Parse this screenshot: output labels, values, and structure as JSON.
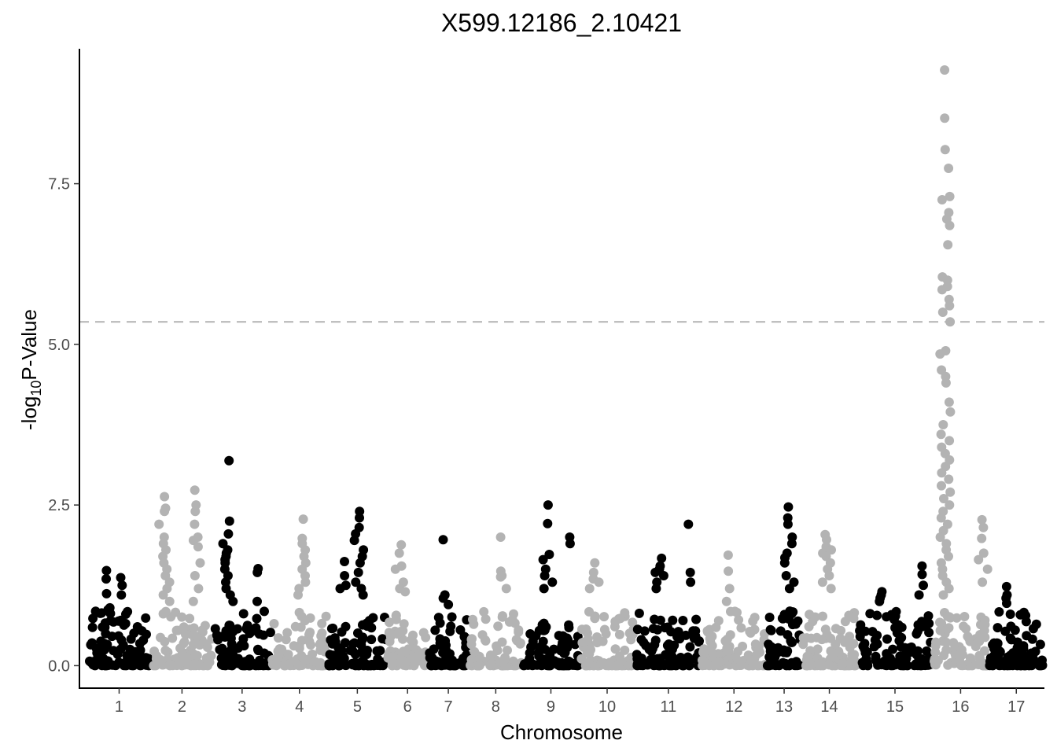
{
  "chart_data": {
    "type": "scatter",
    "title": "X599.12186_2.10421",
    "xlabel": "Chromosome",
    "ylabel": {
      "pre": "-log",
      "sub": "10",
      "post": "P-Value"
    },
    "ylim": [
      -0.35,
      9.6
    ],
    "yticks": [
      0.0,
      2.5,
      5.0,
      7.5
    ],
    "ytick_labels": [
      "0.0",
      "2.5",
      "5.0",
      "7.5"
    ],
    "threshold": 5.35,
    "grid": false,
    "legend": "none",
    "colors": {
      "odd": "#000000",
      "even": "#b3b3b3",
      "threshold": "#b3b3b3"
    },
    "chromosomes": [
      {
        "label": "1",
        "start": 0.0,
        "end": 2.9
      },
      {
        "label": "2",
        "start": 2.9,
        "end": 5.7
      },
      {
        "label": "3",
        "start": 5.7,
        "end": 8.35
      },
      {
        "label": "4",
        "start": 8.35,
        "end": 10.9
      },
      {
        "label": "5",
        "start": 10.9,
        "end": 13.6
      },
      {
        "label": "6",
        "start": 13.6,
        "end": 15.45
      },
      {
        "label": "7",
        "start": 15.45,
        "end": 17.3
      },
      {
        "label": "8",
        "start": 17.3,
        "end": 19.75
      },
      {
        "label": "9",
        "start": 19.75,
        "end": 22.3
      },
      {
        "label": "10",
        "start": 22.3,
        "end": 24.85
      },
      {
        "label": "11",
        "start": 24.85,
        "end": 27.85
      },
      {
        "label": "12",
        "start": 27.85,
        "end": 30.8
      },
      {
        "label": "13",
        "start": 30.8,
        "end": 32.4
      },
      {
        "label": "14",
        "start": 32.4,
        "end": 34.9
      },
      {
        "label": "15",
        "start": 34.9,
        "end": 38.35
      },
      {
        "label": "16",
        "start": 38.35,
        "end": 40.85
      },
      {
        "label": "17",
        "start": 40.85,
        "end": 43.4
      }
    ],
    "xlim": [
      -0.35,
      43.4
    ],
    "peaks": [
      {
        "chr": "1",
        "x": 0.9,
        "values": [
          1.48,
          1.35,
          1.12,
          0.9,
          0.87,
          0.82,
          0.7,
          0.6
        ]
      },
      {
        "chr": "1",
        "x": 1.55,
        "values": [
          1.37,
          1.25,
          1.1,
          0.8
        ]
      },
      {
        "chr": "2",
        "x": 3.5,
        "values": [
          2.63,
          2.45,
          2.4,
          2.2,
          2.0,
          1.9,
          1.8,
          1.7,
          1.6,
          1.5,
          1.4,
          1.3,
          1.2,
          1.1,
          1.0
        ]
      },
      {
        "chr": "2",
        "x": 4.9,
        "values": [
          2.73,
          2.5,
          2.4,
          2.2,
          2.0,
          1.95,
          1.85,
          1.6,
          1.4,
          1.2,
          1.0
        ]
      },
      {
        "chr": "3",
        "x": 6.4,
        "values": [
          3.19,
          2.25,
          2.05,
          1.9,
          1.8,
          1.75,
          1.7,
          1.65,
          1.6,
          1.5,
          1.4,
          1.3,
          1.2,
          1.1,
          1.0
        ]
      },
      {
        "chr": "3",
        "x": 7.7,
        "values": [
          1.51,
          1.45,
          1.0
        ]
      },
      {
        "chr": "4",
        "x": 9.8,
        "values": [
          2.28,
          1.98,
          1.9,
          1.8,
          1.7,
          1.6,
          1.5,
          1.4,
          1.3,
          1.2,
          1.1
        ]
      },
      {
        "chr": "5",
        "x": 12.3,
        "values": [
          2.4,
          2.3,
          2.15,
          2.05,
          1.95,
          1.8,
          1.7,
          1.6,
          1.45,
          1.3,
          1.2,
          1.1
        ]
      },
      {
        "chr": "5",
        "x": 11.7,
        "values": [
          1.62,
          1.4,
          1.25,
          1.2
        ]
      },
      {
        "chr": "6",
        "x": 14.2,
        "values": [
          1.88,
          1.75,
          1.55,
          1.5,
          1.3,
          1.2,
          1.15
        ]
      },
      {
        "chr": "7",
        "x": 16.2,
        "values": [
          1.96,
          1.1,
          1.05,
          0.95
        ]
      },
      {
        "chr": "8",
        "x": 18.8,
        "values": [
          2.0,
          1.47,
          1.4,
          1.38,
          1.2
        ]
      },
      {
        "chr": "9",
        "x": 20.9,
        "values": [
          2.5,
          2.21,
          1.73,
          1.65,
          1.5,
          1.4,
          1.3,
          1.2
        ]
      },
      {
        "chr": "9",
        "x": 21.9,
        "values": [
          2.0,
          1.9
        ]
      },
      {
        "chr": "10",
        "x": 23.0,
        "values": [
          1.6,
          1.45,
          1.35,
          1.3,
          1.2
        ]
      },
      {
        "chr": "11",
        "x": 26.0,
        "values": [
          1.67,
          1.55,
          1.5,
          1.45,
          1.4,
          1.3,
          1.2
        ]
      },
      {
        "chr": "11",
        "x": 27.3,
        "values": [
          2.2,
          1.45,
          1.3
        ]
      },
      {
        "chr": "12",
        "x": 29.1,
        "values": [
          1.72,
          1.47,
          1.2,
          1.0
        ]
      },
      {
        "chr": "13",
        "x": 31.8,
        "values": [
          2.47,
          2.3,
          2.2,
          2.0,
          1.9,
          1.75,
          1.68,
          1.6,
          1.4,
          1.3,
          1.2
        ]
      },
      {
        "chr": "14",
        "x": 33.5,
        "values": [
          2.04,
          1.96,
          1.85,
          1.8,
          1.75,
          1.7,
          1.6,
          1.5,
          1.4,
          1.3,
          1.2
        ]
      },
      {
        "chr": "15",
        "x": 36.0,
        "values": [
          1.15,
          1.1,
          1.05,
          1.0
        ]
      },
      {
        "chr": "15",
        "x": 37.9,
        "values": [
          1.55,
          1.42,
          1.25,
          1.1
        ]
      },
      {
        "chr": "16",
        "x": 38.9,
        "values": [
          9.27,
          8.52,
          8.03,
          7.74,
          7.3,
          7.25,
          7.05,
          6.95,
          6.85,
          6.55,
          6.05,
          6.0,
          5.9,
          5.85,
          5.7,
          5.6,
          5.5,
          5.35,
          4.9,
          4.85,
          4.6,
          4.5,
          4.4,
          4.1,
          3.95,
          3.75,
          3.6,
          3.5,
          3.4,
          3.3,
          3.2,
          3.1,
          3.0,
          2.9,
          2.8,
          2.7,
          2.6,
          2.5,
          2.4,
          2.3,
          2.2,
          2.1,
          2.0,
          1.9,
          1.8,
          1.7,
          1.6,
          1.5,
          1.4,
          1.3,
          1.2,
          1.1
        ]
      },
      {
        "chr": "16",
        "x": 40.6,
        "values": [
          2.27,
          2.15,
          1.98,
          1.75,
          1.65,
          1.5,
          1.3
        ]
      },
      {
        "chr": "17",
        "x": 41.7,
        "values": [
          1.23,
          1.1,
          1.05,
          0.97,
          0.8
        ]
      }
    ]
  }
}
